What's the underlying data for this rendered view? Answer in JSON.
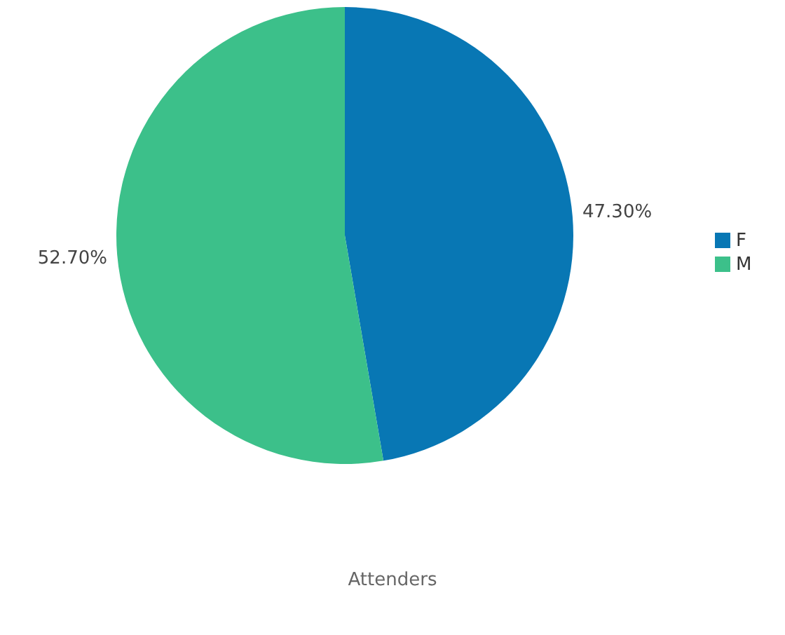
{
  "chart_data": {
    "type": "pie",
    "title": "Attenders",
    "categories": [
      "F",
      "M"
    ],
    "values": [
      47.3,
      52.7
    ],
    "colors": [
      "#0877b4",
      "#3cc08a"
    ],
    "value_labels": [
      "47.30%",
      "52.70%"
    ],
    "legend": "right"
  }
}
